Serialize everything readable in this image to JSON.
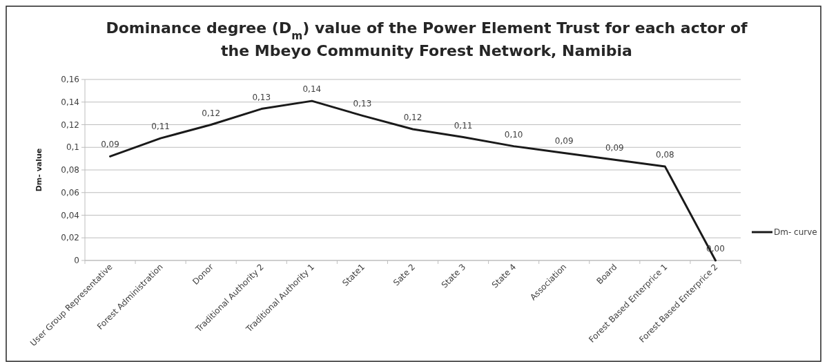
{
  "chart_data": {
    "type": "line",
    "title": "Dominance degree (D$_{m}$) value of the Power Element Trust for each actor of the Mbeyo Community Forest Network, Namibia",
    "ylabel": "Dm- value",
    "categories": [
      "User Group Representative",
      "Forest  Administration",
      "Donor",
      "Traditional Authority 2",
      "Traditional Authority 1",
      "State1",
      "Sate 2",
      "State 3",
      "State 4",
      "Association",
      "Board",
      "Forest  Based Enterprice 1",
      "Forest  Based Enterprice 2"
    ],
    "series": [
      {
        "name": "Dm- curve",
        "color": "#1a1a1a",
        "values": [
          0.092,
          0.108,
          0.12,
          0.134,
          0.141,
          0.128,
          0.116,
          0.109,
          0.101,
          0.095,
          0.089,
          0.083,
          0
        ],
        "value_labels": [
          "0,09",
          "0,11",
          "0,12",
          "0,13",
          "0,14",
          "0,13",
          "0,12",
          "0,11",
          "0,10",
          "0,09",
          "0,09",
          "0,08",
          "0,00"
        ]
      }
    ],
    "ylim": [
      0,
      0.16
    ],
    "yticks": [
      {
        "value": 0,
        "label": "0"
      },
      {
        "value": 0.02,
        "label": "0,02"
      },
      {
        "value": 0.04,
        "label": "0,04"
      },
      {
        "value": 0.06,
        "label": "0,06"
      },
      {
        "value": 0.08,
        "label": "0,08"
      },
      {
        "value": 0.1,
        "label": "0,1"
      },
      {
        "value": 0.12,
        "label": "0,12"
      },
      {
        "value": 0.14,
        "label": "0,14"
      },
      {
        "value": 0.16,
        "label": "0,16"
      }
    ],
    "grid": "y",
    "legend": "right",
    "marker": "none",
    "line_style": "solid"
  }
}
